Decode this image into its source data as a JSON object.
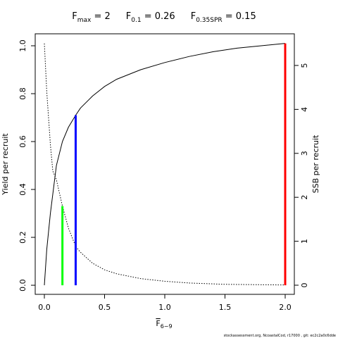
{
  "chart_data": {
    "type": "line",
    "title": [
      {
        "text": "F",
        "sub": "max",
        "rest": " = 2"
      },
      {
        "text": "F",
        "sub": "0.1",
        "rest": " = 0.26"
      },
      {
        "text": "F",
        "sub": "0.35SPR",
        "rest": " = 0.15"
      }
    ],
    "xlabel": {
      "text": "F",
      "sub": "6−9"
    },
    "ylabel": "Yield per recruit",
    "y2label": "SSB per recruit",
    "footer": "stockassessment.org, NcoastalCod, r17000 , git: ec2c2a0c6dde",
    "xlim": [
      -0.076,
      2.076
    ],
    "ylim": [
      -0.038,
      1.05
    ],
    "y2lim": [
      -0.208,
      5.72
    ],
    "xticks": [
      {
        "value": 0,
        "label": "0.0"
      },
      0.5,
      {
        "value": 1,
        "label": "1.0"
      },
      1.5,
      {
        "value": 2,
        "label": "2.0"
      }
    ],
    "yticks": [
      {
        "value": 0,
        "label": "0.0"
      },
      0.2,
      0.4,
      0.6,
      0.8,
      {
        "value": 1,
        "label": "1.0"
      }
    ],
    "y2ticks": [
      0,
      1,
      2,
      3,
      4,
      5
    ],
    "series": [
      {
        "color": "#000000",
        "linestyle": "solid",
        "axis": "y",
        "x": [
          0,
          0.02,
          0.05,
          0.1,
          0.15,
          0.2,
          0.26,
          0.3,
          0.4,
          0.5,
          0.6,
          0.8,
          1.0,
          1.2,
          1.4,
          1.6,
          1.8,
          2.0
        ],
        "values": [
          0,
          0.15,
          0.3,
          0.5,
          0.6,
          0.66,
          0.71,
          0.74,
          0.79,
          0.83,
          0.86,
          0.9,
          0.93,
          0.955,
          0.975,
          0.99,
          1.0,
          1.01
        ]
      },
      {
        "color": "#000000",
        "linestyle": "dotted",
        "axis": "y2",
        "x": [
          0,
          0.02,
          0.05,
          0.07,
          0.1,
          0.15,
          0.2,
          0.26,
          0.3,
          0.4,
          0.5,
          0.6,
          0.8,
          1.0,
          1.2,
          1.5,
          2.0
        ],
        "values": [
          5.5,
          4.4,
          3.2,
          2.6,
          2.4,
          1.8,
          1.3,
          0.88,
          0.75,
          0.5,
          0.35,
          0.26,
          0.15,
          0.09,
          0.05,
          0.02,
          0.005
        ]
      }
    ],
    "reference_lines": [
      {
        "x": 0.15,
        "top": 1.8,
        "axis": "y2",
        "color": "#00ff00"
      },
      {
        "x": 0.26,
        "top": 0.71,
        "axis": "y",
        "color": "#0000ff"
      },
      {
        "x": 2,
        "top": 1.01,
        "axis": "y",
        "color": "#ff0000"
      }
    ]
  }
}
